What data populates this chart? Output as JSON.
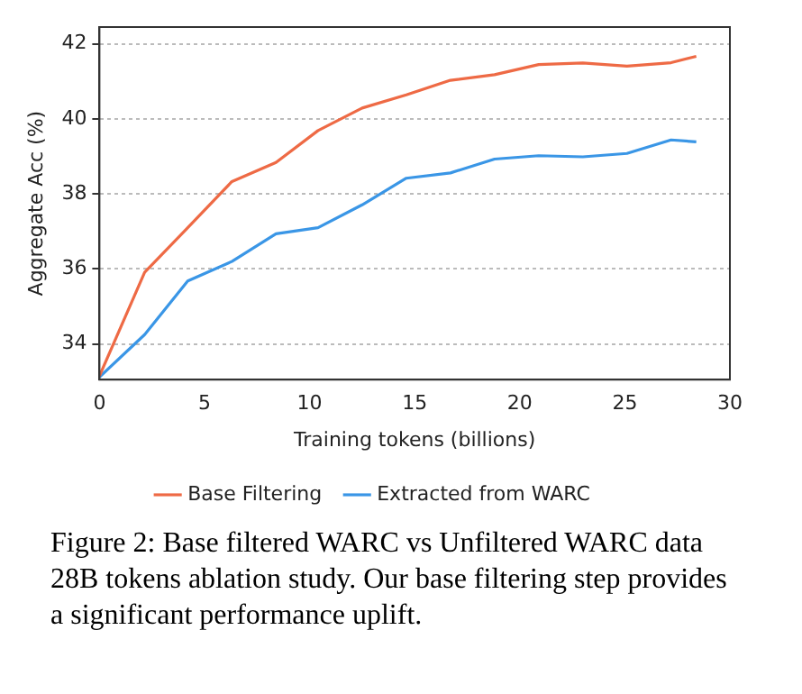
{
  "chart_data": {
    "type": "line",
    "xlabel": "Training tokens (billions)",
    "ylabel": "Aggregate Acc (%)",
    "x": [
      0,
      2.15,
      4.2,
      6.3,
      8.4,
      10.4,
      12.5,
      14.6,
      16.7,
      18.8,
      20.9,
      23,
      25.1,
      27.2,
      28.4
    ],
    "series": [
      {
        "name": "Base Filtering",
        "color": "#ee6a45",
        "values": [
          33.15,
          35.91,
          37.1,
          38.33,
          38.84,
          39.69,
          40.29,
          40.64,
          41.03,
          41.18,
          41.45,
          41.49,
          41.41,
          41.5,
          41.67
        ]
      },
      {
        "name": "Extracted from WARC",
        "color": "#3a96e6",
        "values": [
          33.12,
          34.25,
          35.68,
          36.2,
          36.94,
          37.1,
          37.71,
          38.42,
          38.56,
          38.93,
          39.02,
          38.99,
          39.08,
          39.44,
          39.39
        ]
      }
    ],
    "xlim": [
      0,
      30
    ],
    "xticks": [
      0,
      5,
      10,
      15,
      20,
      25,
      30
    ],
    "ylim": [
      33.05,
      42.45
    ],
    "yticks": [
      34,
      36,
      38,
      40,
      42
    ],
    "grid": "y",
    "legend": "bottom",
    "marker": "none",
    "line_style": "solid",
    "annotations": [
      "Figure 2: Base filtered WARC vs Unfiltered WARC data 28B tokens ablation study. Our base filtering step provides a significant performance uplift."
    ]
  }
}
